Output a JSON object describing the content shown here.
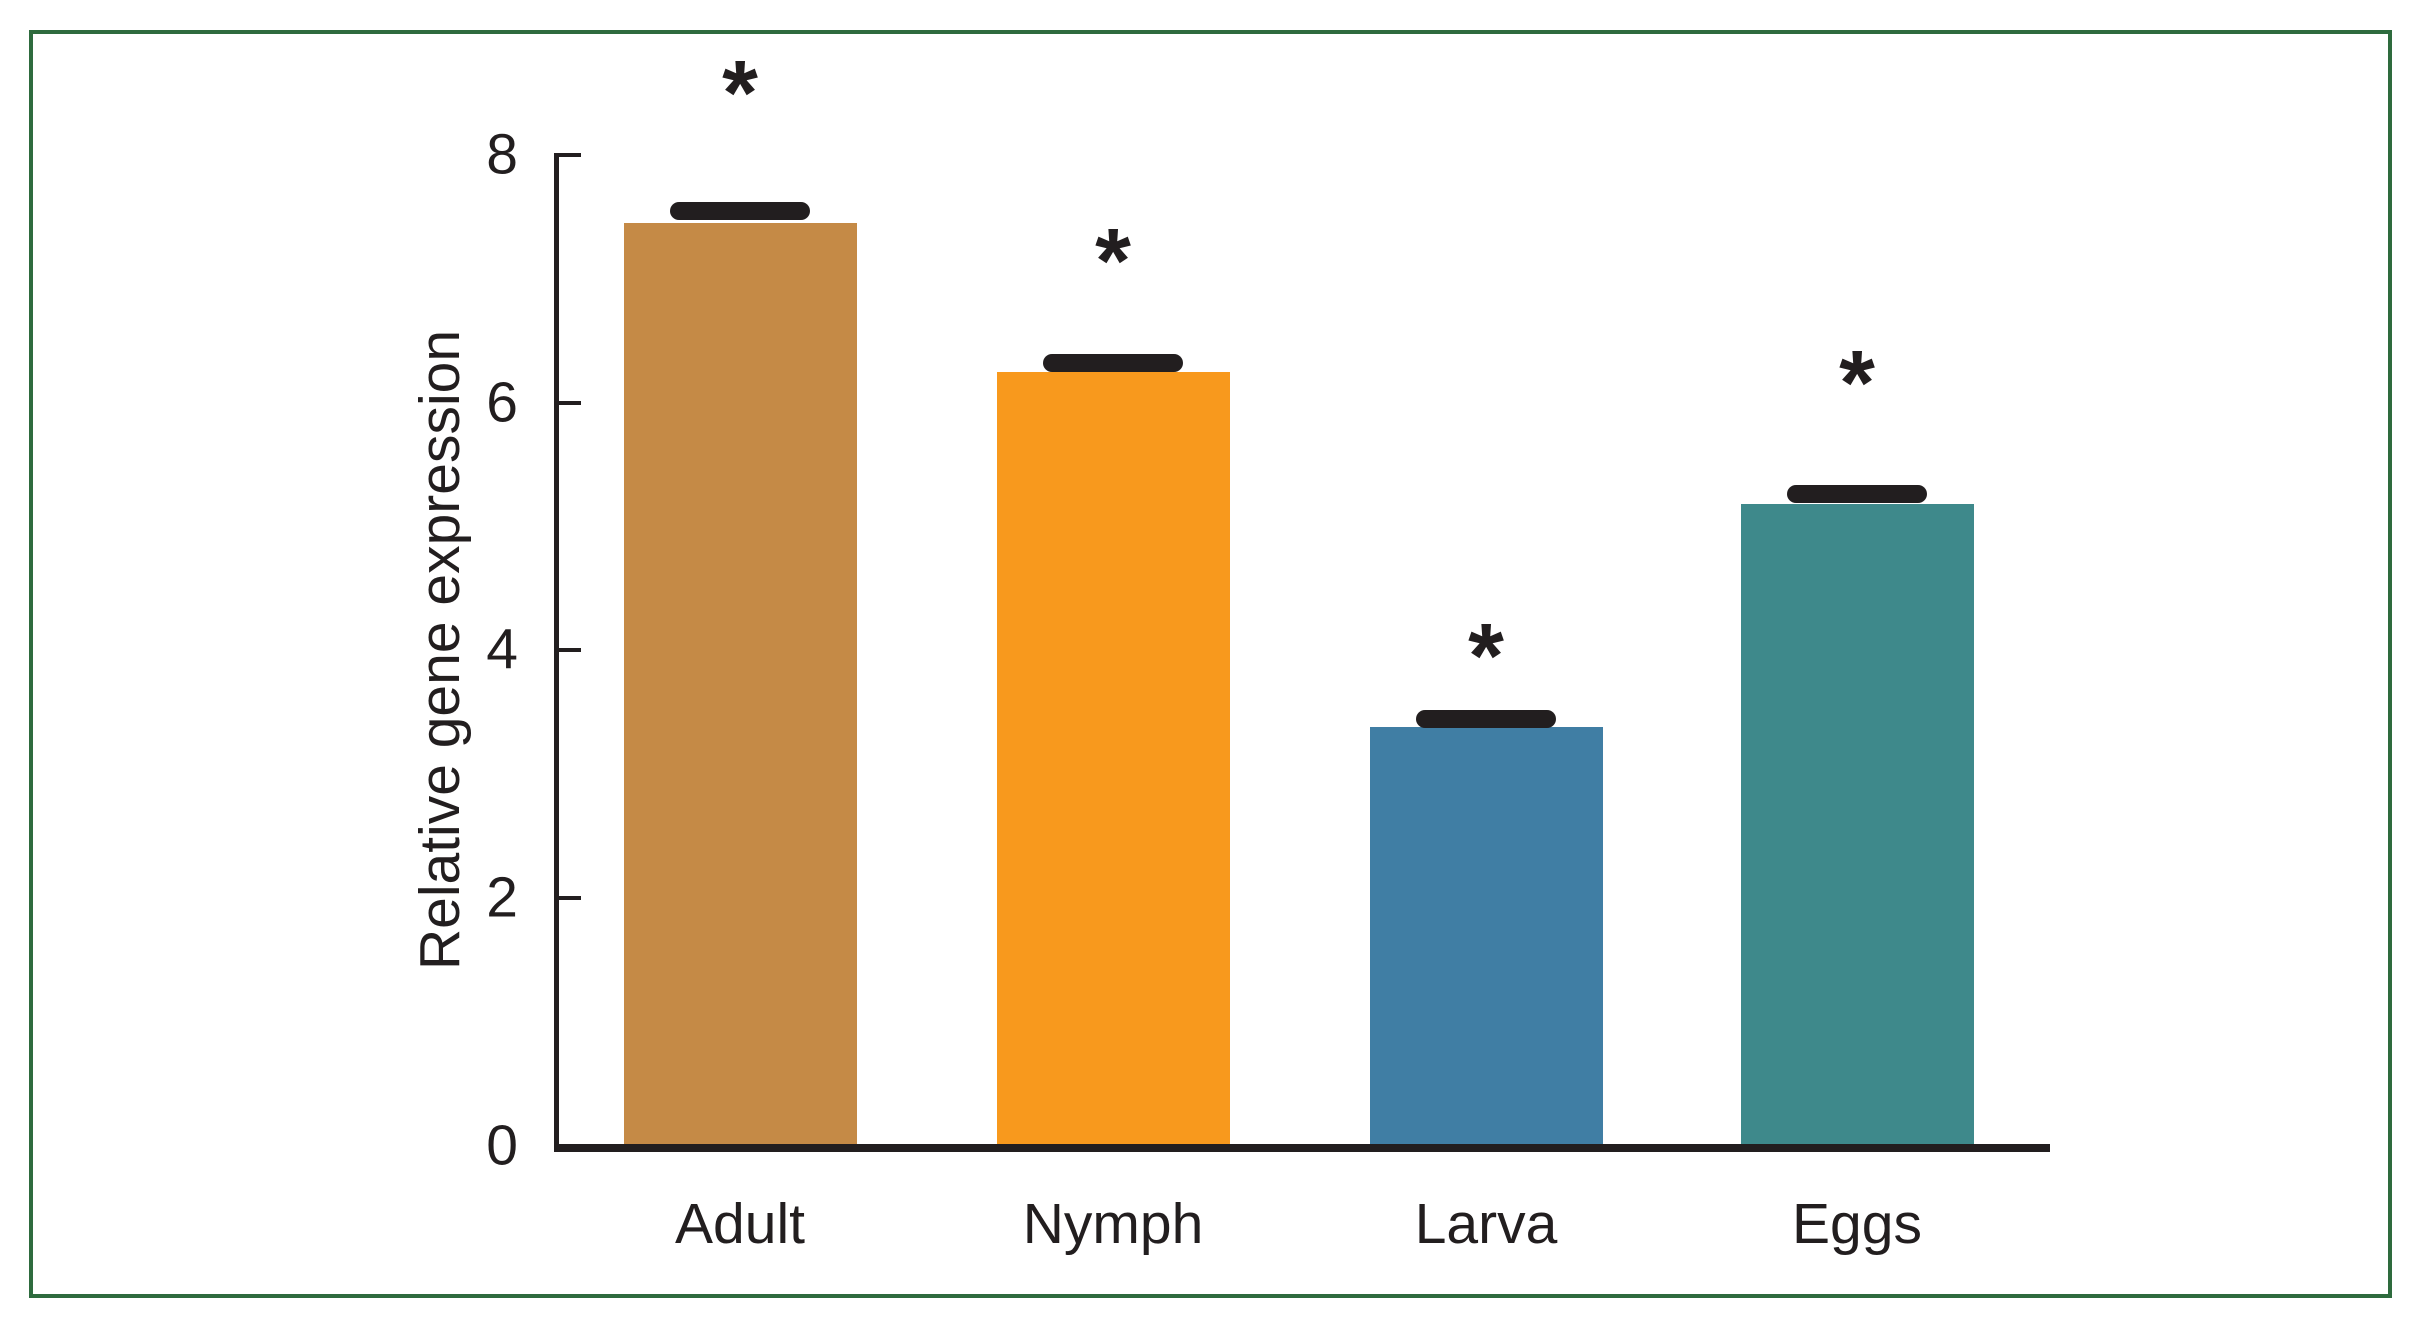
{
  "chart_data": {
    "type": "bar",
    "title": "",
    "categories": [
      "Adult",
      "Nymph",
      "Larva",
      "Eggs"
    ],
    "values": [
      7.45,
      6.25,
      3.38,
      5.18
    ],
    "errors": [
      0.1,
      0.07,
      0.07,
      0.08
    ],
    "annotations": [
      "*",
      "*",
      "*",
      "*"
    ],
    "ylabel": "Relative gene expression",
    "xlabel": "",
    "ylim": [
      0,
      8
    ],
    "yticks": [
      0,
      2,
      4,
      6,
      8
    ],
    "grid": false,
    "legend_position": "none",
    "bar_colors": [
      "#C58A46",
      "#F8991D",
      "#407EA4",
      "#3E898B"
    ],
    "frame_color": "#2E6B3E",
    "ink_color": "#221E1F"
  }
}
